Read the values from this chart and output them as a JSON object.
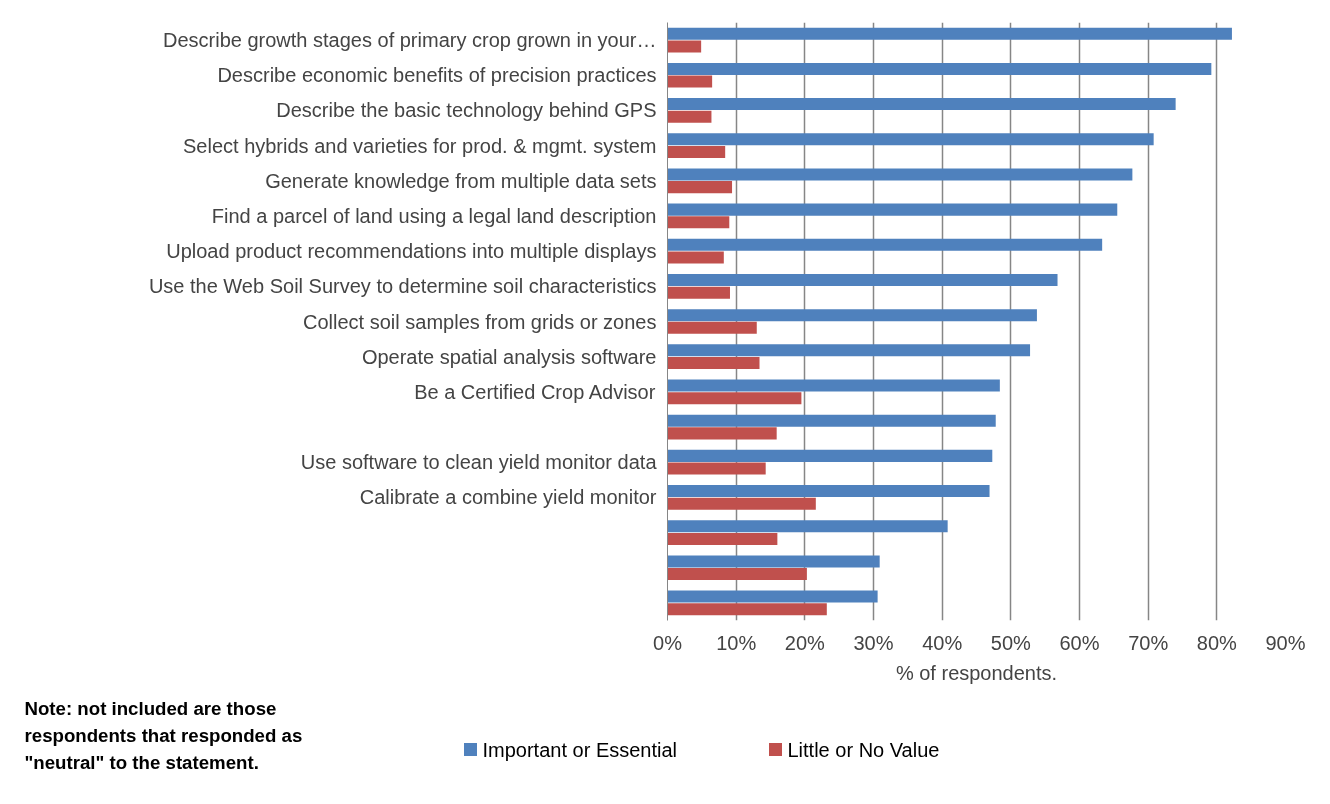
{
  "chart_data": {
    "type": "bar",
    "orientation": "horizontal",
    "xlabel": "% of respondents.",
    "categories": [
      "Describe growth stages of primary crop grown in your…",
      "Describe economic benefits of precision practices",
      "Describe the basic technology behind GPS",
      "Select hybrids and varieties for prod. & mgmt. system",
      "Generate knowledge from multiple data sets",
      "Find a parcel of land using a legal land description",
      "Upload product recommendations into multiple displays",
      "Use the Web Soil Survey to determine soil characteristics",
      "Collect soil samples from grids or zones",
      "Operate spatial analysis software",
      "Be a Certified Crop Advisor",
      null,
      "Use software to clean yield monitor data",
      "Calibrate a combine yield monitor",
      null,
      null,
      null
    ],
    "series": [
      {
        "name": "Important or Essential",
        "color": "#4f81bd",
        "values": [
          82.2,
          79.2,
          74.0,
          70.8,
          67.7,
          65.5,
          63.3,
          56.8,
          53.8,
          52.8,
          48.4,
          47.8,
          47.3,
          46.9,
          40.8,
          30.9,
          30.6
        ]
      },
      {
        "name": "Little or No Value",
        "color": "#c0504d",
        "values": [
          4.9,
          6.5,
          6.4,
          8.4,
          9.4,
          9.0,
          8.2,
          9.1,
          13.0,
          13.4,
          19.5,
          15.9,
          14.3,
          21.6,
          16.0,
          20.3,
          23.2
        ]
      }
    ],
    "xlim": [
      0,
      90
    ],
    "xticks": [
      {
        "value": 0,
        "label": "0%"
      },
      {
        "value": 10,
        "label": "10%"
      },
      {
        "value": 20,
        "label": "20%"
      },
      {
        "value": 30,
        "label": "30%"
      },
      {
        "value": 40,
        "label": "40%"
      },
      {
        "value": 50,
        "label": "50%"
      },
      {
        "value": 60,
        "label": "60%"
      },
      {
        "value": 70,
        "label": "70%"
      },
      {
        "value": 80,
        "label": "80%"
      },
      {
        "value": 90,
        "label": "90%"
      }
    ],
    "grid": "x",
    "legend": "bottom",
    "annotations": [
      "Note: not included are those respondents that responded as \"neutral\" to the statement."
    ]
  }
}
